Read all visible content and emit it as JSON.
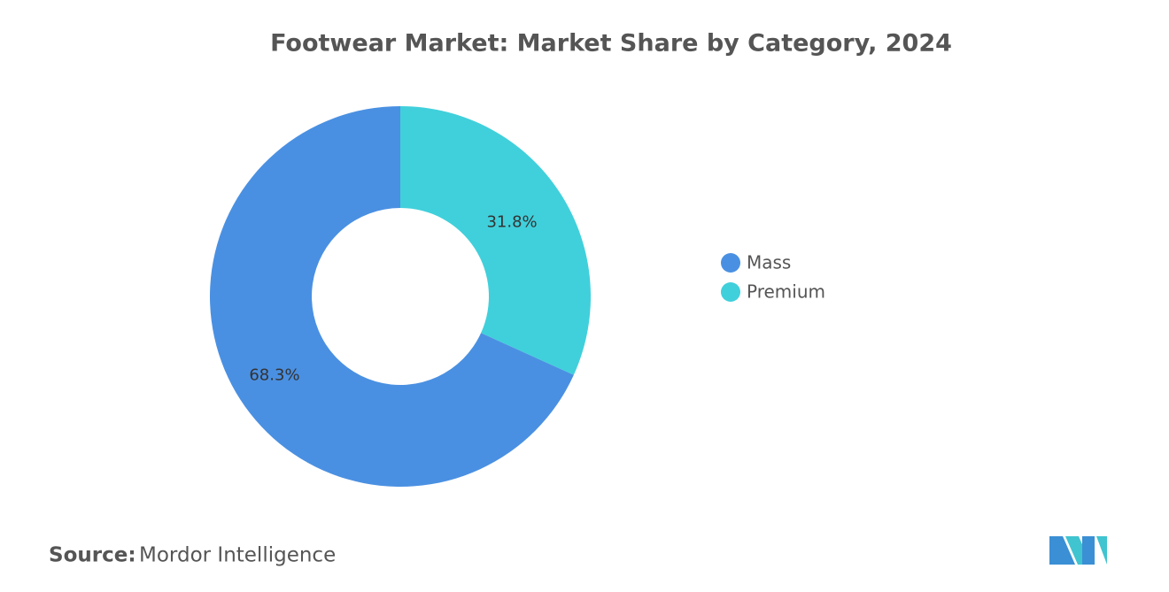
{
  "chart_data": {
    "type": "pie",
    "title": "Footwear Market: Market Share by Category, 2024",
    "categories": [
      "Mass",
      "Premium"
    ],
    "values": [
      68.3,
      31.8
    ],
    "value_labels": [
      "68.3%",
      "31.8%"
    ],
    "colors": [
      "#4a90e2",
      "#40d0db"
    ],
    "legend": "right"
  },
  "source": {
    "label": "Source:",
    "text": "Mordor Intelligence"
  }
}
